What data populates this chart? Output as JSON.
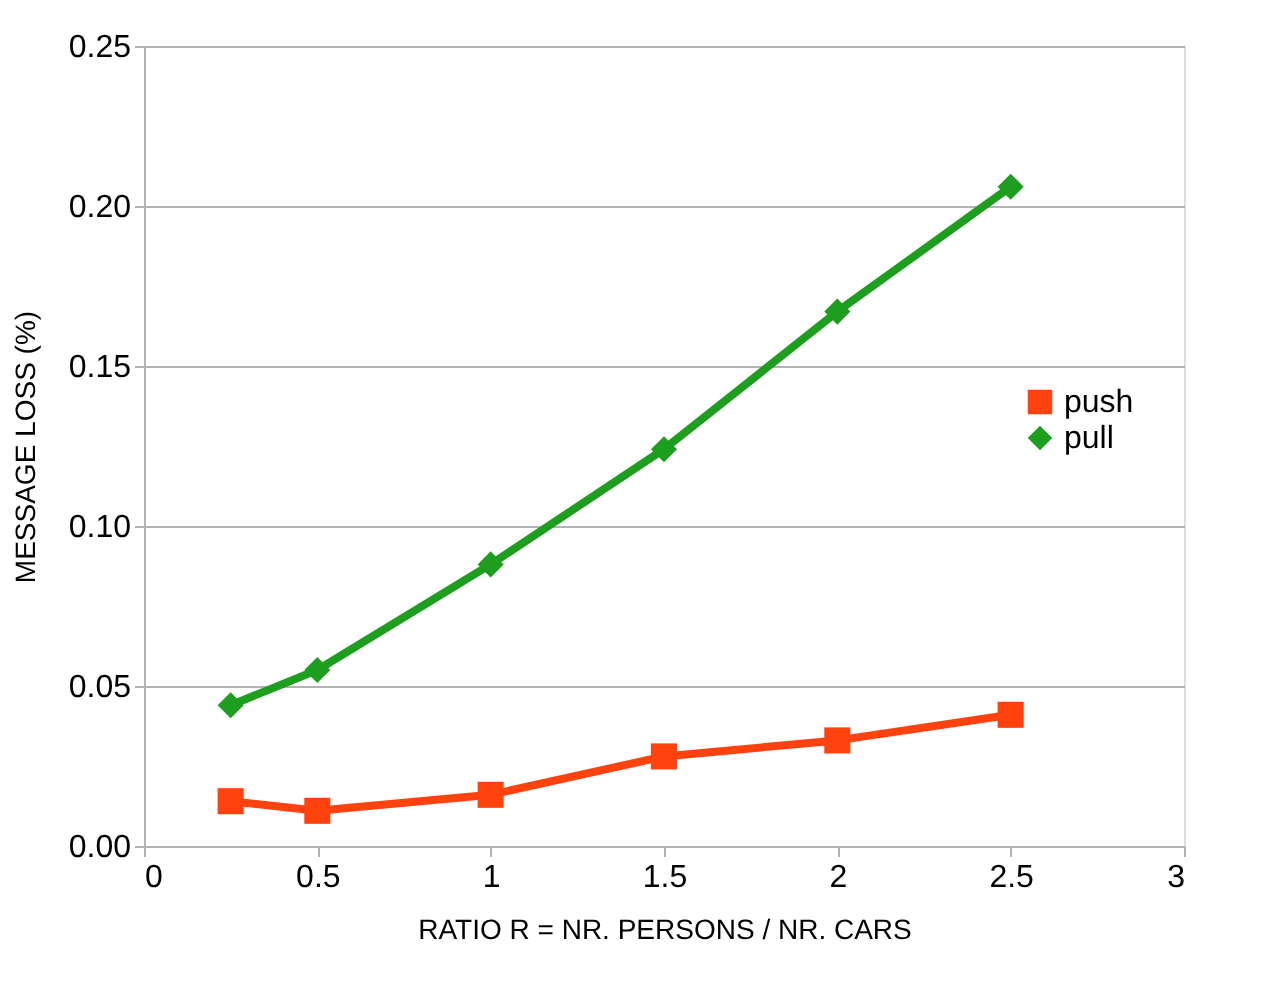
{
  "chart_data": {
    "type": "line",
    "xlabel": "RATIO R = NR. PERSONS / NR. CARS",
    "ylabel": "MESSAGE  LOSS  (%)",
    "x": [
      0.25,
      0.5,
      1,
      1.5,
      2,
      2.5
    ],
    "series": [
      {
        "name": "push",
        "color": "#ff420e",
        "marker": "square",
        "values": [
          0.014,
          0.011,
          0.016,
          0.028,
          0.033,
          0.041
        ]
      },
      {
        "name": "pull",
        "color": "#1e9e1e",
        "marker": "diamond",
        "values": [
          0.044,
          0.055,
          0.088,
          0.124,
          0.167,
          0.206
        ]
      }
    ],
    "xlim": [
      0,
      3
    ],
    "xticks": [
      0,
      0.5,
      1,
      1.5,
      2,
      2.5,
      3
    ],
    "ylim": [
      0,
      0.25
    ],
    "yticks": [
      {
        "value": 0,
        "label": "0.00"
      },
      {
        "value": 0.05,
        "label": "0.05"
      },
      {
        "value": 0.1,
        "label": "0.10"
      },
      {
        "value": 0.15,
        "label": "0.15"
      },
      {
        "value": 0.2,
        "label": "0.20"
      },
      {
        "value": 0.25,
        "label": "0.25"
      }
    ],
    "grid": "y",
    "legend": "right",
    "line_style": "solid"
  }
}
